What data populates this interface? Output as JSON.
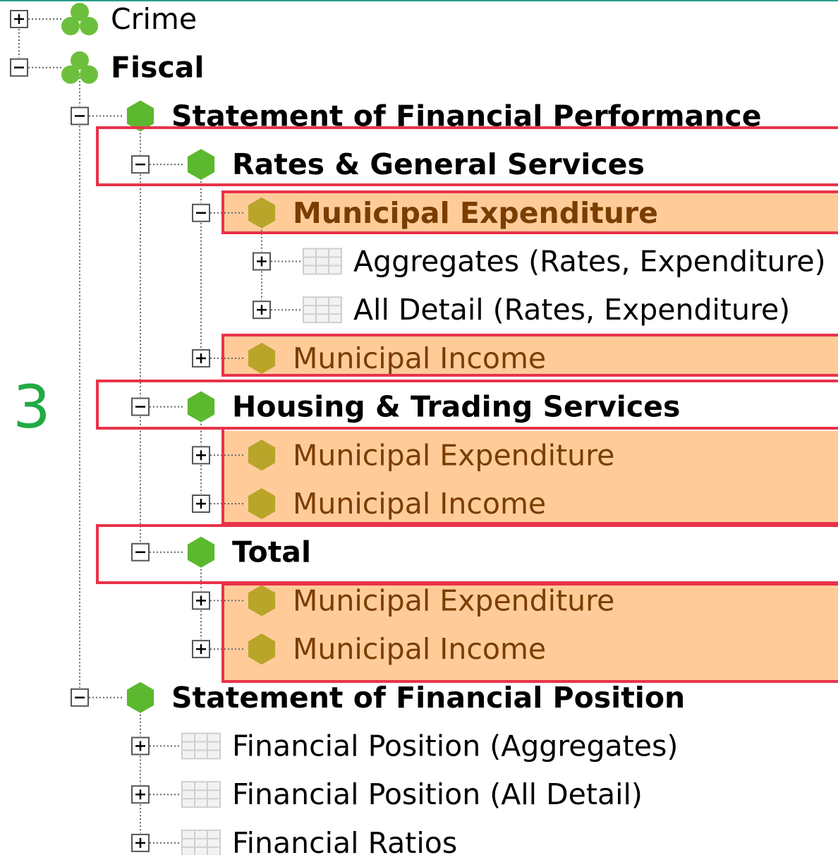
{
  "tree": {
    "nodes": [
      "Crime",
      "Fiscal",
      "Statement of Financial Performance",
      "Rates & General Services",
      "Municipal Expenditure",
      "Aggregates (Rates, Expenditure)",
      "All Detail (Rates, Expenditure)",
      "Municipal Income",
      "Housing & Trading Services",
      "Municipal Expenditure",
      "Municipal Income",
      "Total",
      "Municipal Expenditure",
      "Municipal Income",
      "Statement of Financial Position",
      "Financial Position (Aggregates)",
      "Financial Position (All Detail)",
      "Financial Ratios"
    ]
  },
  "annotation": "3"
}
